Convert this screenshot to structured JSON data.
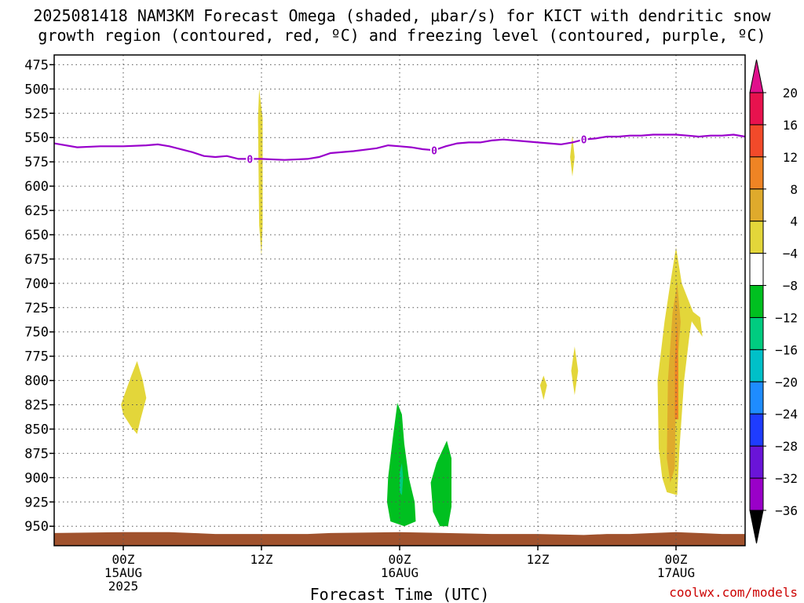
{
  "title_line1": "2025081418 NAM3KM Forecast Omega (shaded, μbar/s) for KICT with dendritic snow",
  "title_line2": "growth region (contoured, red, ºC) and freezing level (contoured, purple, ºC)",
  "credit": "coolwx.com/models",
  "chart_data": {
    "type": "time-height",
    "xlabel": "Forecast Time (UTC)",
    "x_range_hours": [
      -6,
      54
    ],
    "x_ticks": [
      {
        "hour": 0,
        "lines": [
          "00Z",
          "15AUG",
          "2025"
        ]
      },
      {
        "hour": 12,
        "lines": [
          "12Z"
        ]
      },
      {
        "hour": 24,
        "lines": [
          "00Z",
          "16AUG"
        ]
      },
      {
        "hour": 36,
        "lines": [
          "12Z"
        ]
      },
      {
        "hour": 48,
        "lines": [
          "00Z",
          "17AUG"
        ]
      }
    ],
    "y_range_hpa": [
      465,
      970
    ],
    "y_ticks": [
      475,
      500,
      525,
      550,
      575,
      600,
      625,
      650,
      675,
      700,
      725,
      750,
      775,
      800,
      825,
      850,
      875,
      900,
      925,
      950
    ],
    "grid": true,
    "colorbar": {
      "ticks": [
        20,
        16,
        12,
        8,
        4,
        -4,
        -8,
        -12,
        -16,
        -20,
        -24,
        -28,
        -32,
        -36
      ],
      "colors": [
        "#e8124e",
        "#f24a2a",
        "#ef8424",
        "#dfaa2c",
        "#e3d63a",
        "#ffffff",
        "#00c020",
        "#00cc80",
        "#00c0c8",
        "#1e8cff",
        "#1e3cff",
        "#6a14d8",
        "#9a00c8",
        "#a8a8a8"
      ],
      "top_arrow_color": "#e0108c",
      "bottom_arrow_color": "#000000"
    },
    "freezing_level": {
      "label": "0",
      "color": "#9900cc",
      "points": [
        [
          -6,
          556
        ],
        [
          -4,
          560
        ],
        [
          -2,
          559
        ],
        [
          0,
          559
        ],
        [
          2,
          558
        ],
        [
          3,
          557
        ],
        [
          4,
          559
        ],
        [
          6,
          565
        ],
        [
          7,
          569
        ],
        [
          8,
          570
        ],
        [
          9,
          569
        ],
        [
          10,
          572
        ],
        [
          12,
          572
        ],
        [
          14,
          573
        ],
        [
          16,
          572
        ],
        [
          17,
          570
        ],
        [
          18,
          566
        ],
        [
          20,
          564
        ],
        [
          22,
          561
        ],
        [
          23,
          558
        ],
        [
          24,
          559
        ],
        [
          25,
          560
        ],
        [
          26,
          562
        ],
        [
          27,
          563
        ],
        [
          28,
          559
        ],
        [
          29,
          556
        ],
        [
          30,
          555
        ],
        [
          31,
          555
        ],
        [
          32,
          553
        ],
        [
          33,
          552
        ],
        [
          34,
          553
        ],
        [
          35,
          554
        ],
        [
          36,
          555
        ],
        [
          37,
          556
        ],
        [
          38,
          557
        ],
        [
          39,
          555
        ],
        [
          40,
          552
        ],
        [
          41,
          551
        ],
        [
          42,
          549
        ],
        [
          43,
          549
        ],
        [
          44,
          548
        ],
        [
          45,
          548
        ],
        [
          46,
          547
        ],
        [
          47,
          547
        ],
        [
          48,
          547
        ],
        [
          49,
          548
        ],
        [
          50,
          549
        ],
        [
          51,
          548
        ],
        [
          52,
          548
        ],
        [
          53,
          547
        ],
        [
          54,
          549
        ]
      ],
      "label_hours": [
        11,
        27,
        40
      ]
    },
    "omega_regions": [
      {
        "value_range": [
          4,
          8
        ],
        "points": [
          [
            11.8,
            500
          ],
          [
            12.1,
            530
          ],
          [
            12.1,
            640
          ],
          [
            12,
            672
          ],
          [
            11.8,
            640
          ],
          [
            11.7,
            530
          ]
        ]
      },
      {
        "value_range": [
          4,
          8
        ],
        "points": [
          [
            0,
            818
          ],
          [
            0.7,
            795
          ],
          [
            1.2,
            780
          ],
          [
            1.7,
            800
          ],
          [
            2,
            818
          ],
          [
            1.5,
            840
          ],
          [
            1.2,
            855
          ],
          [
            0.7,
            848
          ],
          [
            0,
            835
          ],
          [
            -0.2,
            825
          ]
        ]
      },
      {
        "value_range": [
          4,
          8
        ],
        "points": [
          [
            39,
            548
          ],
          [
            39.2,
            570
          ],
          [
            39,
            590
          ],
          [
            38.8,
            570
          ]
        ]
      },
      {
        "value_range": [
          4,
          8
        ],
        "points": [
          [
            36.5,
            795
          ],
          [
            36.8,
            805
          ],
          [
            36.5,
            820
          ],
          [
            36.2,
            805
          ]
        ]
      },
      {
        "value_range": [
          4,
          8
        ],
        "points": [
          [
            39.2,
            765
          ],
          [
            39.5,
            790
          ],
          [
            39.2,
            815
          ],
          [
            38.9,
            790
          ]
        ]
      },
      {
        "value_range": [
          4,
          8
        ],
        "points": [
          [
            46.5,
            870
          ],
          [
            46.4,
            800
          ],
          [
            47,
            740
          ],
          [
            47.5,
            700
          ],
          [
            48,
            663
          ],
          [
            48.5,
            700
          ],
          [
            49.5,
            730
          ],
          [
            49.2,
            750
          ],
          [
            48.7,
            800
          ],
          [
            48.3,
            870
          ],
          [
            48.1,
            918
          ],
          [
            47.2,
            915
          ],
          [
            46.8,
            900
          ]
        ]
      },
      {
        "value_range": [
          4,
          8
        ],
        "points": [
          [
            48.5,
            710
          ],
          [
            49,
            725
          ],
          [
            50.1,
            735
          ],
          [
            50.3,
            755
          ],
          [
            49.4,
            740
          ]
        ]
      },
      {
        "value_range": [
          8,
          12
        ],
        "points": [
          [
            47.2,
            880
          ],
          [
            47.3,
            800
          ],
          [
            47.7,
            730
          ],
          [
            48.1,
            700
          ],
          [
            48.4,
            740
          ],
          [
            48,
            800
          ],
          [
            47.9,
            890
          ],
          [
            47.5,
            905
          ]
        ]
      },
      {
        "value_range": [
          12,
          16
        ],
        "points": [
          [
            47.9,
            840
          ],
          [
            47.9,
            780
          ],
          [
            48.1,
            740
          ],
          [
            48.2,
            780
          ],
          [
            48.2,
            840
          ]
        ]
      },
      {
        "value_range": [
          -8,
          -4
        ],
        "points": [
          [
            23,
            900
          ],
          [
            23.4,
            860
          ],
          [
            23.8,
            823
          ],
          [
            24.2,
            835
          ],
          [
            24.4,
            865
          ],
          [
            24.8,
            900
          ],
          [
            25.3,
            925
          ],
          [
            25.4,
            945
          ],
          [
            24.4,
            950
          ],
          [
            23.2,
            945
          ],
          [
            22.9,
            925
          ]
        ]
      },
      {
        "value_range": [
          -8,
          -4
        ],
        "points": [
          [
            26.7,
            905
          ],
          [
            27.2,
            885
          ],
          [
            28.1,
            862
          ],
          [
            28.5,
            880
          ],
          [
            28.5,
            930
          ],
          [
            28.2,
            950
          ],
          [
            27.5,
            950
          ],
          [
            26.9,
            935
          ]
        ]
      },
      {
        "value_range": [
          -12,
          -8
        ],
        "points": [
          [
            24,
            895
          ],
          [
            24.2,
            885
          ],
          [
            24.3,
            900
          ],
          [
            24.2,
            918
          ],
          [
            24,
            915
          ]
        ]
      }
    ],
    "ground": {
      "color": "#a0522d",
      "points": [
        [
          -6,
          957
        ],
        [
          0,
          956
        ],
        [
          4,
          956
        ],
        [
          6,
          957
        ],
        [
          8,
          958
        ],
        [
          16,
          958
        ],
        [
          18,
          957
        ],
        [
          24,
          956
        ],
        [
          28,
          957
        ],
        [
          32,
          958
        ],
        [
          36,
          958
        ],
        [
          40,
          959
        ],
        [
          42,
          958
        ],
        [
          44,
          958
        ],
        [
          46,
          957
        ],
        [
          48,
          956
        ],
        [
          50,
          957
        ],
        [
          52,
          958
        ],
        [
          54,
          958
        ]
      ]
    }
  }
}
